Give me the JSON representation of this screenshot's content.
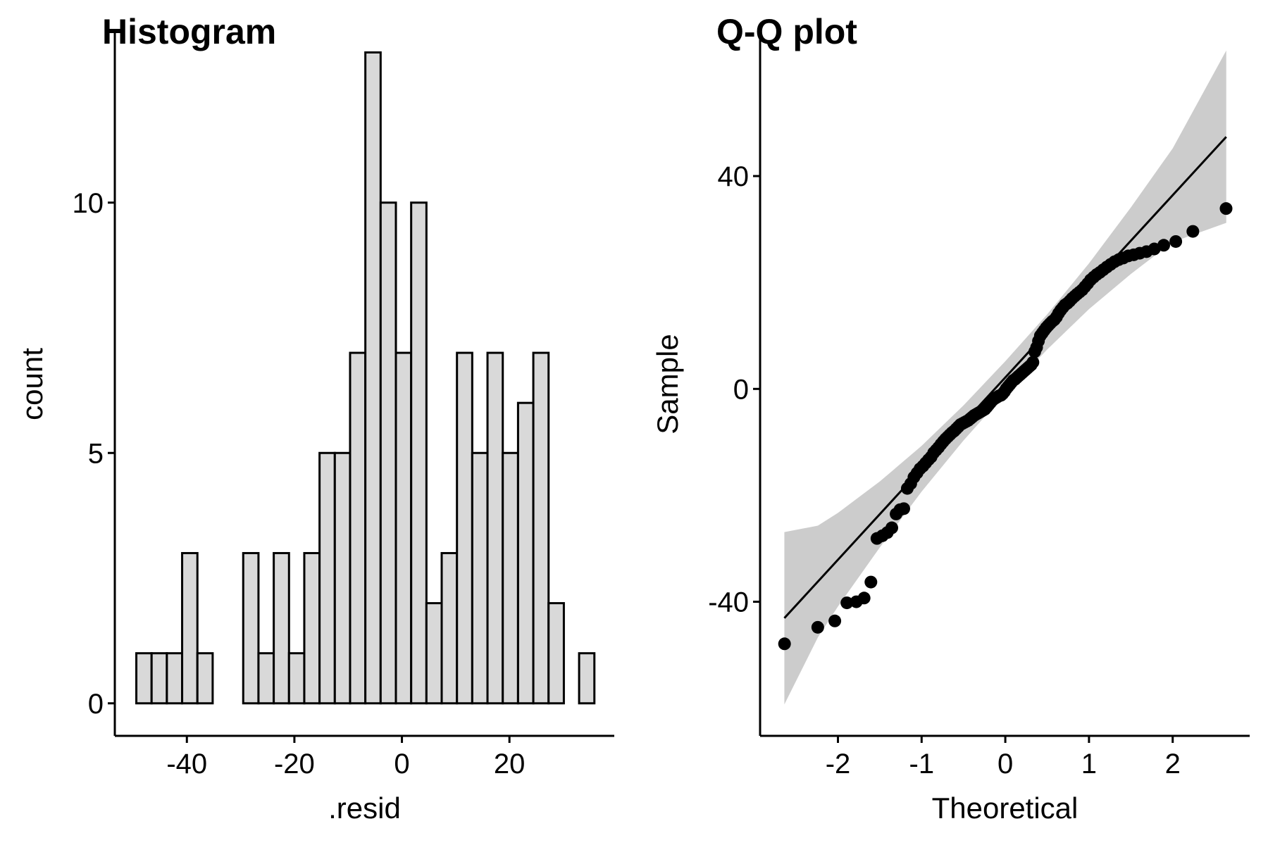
{
  "chart_data": [
    {
      "type": "histogram",
      "title": "Histogram",
      "x_label": ".resid",
      "y_label": "count",
      "bins": [
        -49.4,
        -46.56,
        -43.72,
        -40.88,
        -38.04,
        -35.2,
        -32.36,
        -29.52,
        -26.68,
        -23.84,
        -21.0,
        -18.16,
        -15.32,
        -12.48,
        -9.64,
        -6.8,
        -3.96,
        -1.12,
        1.72,
        4.56,
        7.4,
        10.24,
        13.08,
        15.92,
        18.76,
        21.6,
        24.44,
        27.28,
        30.12,
        32.96,
        35.8
      ],
      "values": [
        1,
        1,
        1,
        3,
        1,
        0,
        0,
        3,
        1,
        3,
        1,
        3,
        5,
        5,
        7,
        13,
        10,
        7,
        10,
        2,
        3,
        7,
        5,
        7,
        5,
        6,
        7,
        2,
        0,
        1
      ],
      "color": "#d9d9d9",
      "edge_color": "#000000",
      "xlim": [
        -53.4,
        39.5
      ],
      "ylim": [
        -0.65,
        13.4
      ],
      "xticks": [
        -40,
        -20,
        0,
        20
      ],
      "yticks": [
        0,
        5,
        10
      ]
    },
    {
      "type": "qq",
      "title": "Q-Q plot",
      "x_label": "Theoretical",
      "y_label": "Sample",
      "x": [
        -2.638,
        -2.241,
        -2.037,
        -1.893,
        -1.78,
        -1.687,
        -1.606,
        -1.534,
        -1.469,
        -1.41,
        -1.356,
        -1.305,
        -1.258,
        -1.213,
        -1.171,
        -1.13,
        -1.092,
        -1.055,
        -1.019,
        -0.984,
        -0.951,
        -0.918,
        -0.887,
        -0.856,
        -0.827,
        -0.798,
        -0.769,
        -0.742,
        -0.714,
        -0.688,
        -0.662,
        -0.636,
        -0.611,
        -0.586,
        -0.561,
        -0.536,
        -0.512,
        -0.489,
        -0.465,
        -0.442,
        -0.419,
        -0.396,
        -0.374,
        -0.352,
        -0.33,
        -0.308,
        -0.286,
        -0.264,
        -0.243,
        -0.221,
        -0.2,
        -0.179,
        -0.157,
        -0.136,
        -0.115,
        -0.094,
        -0.073,
        -0.052,
        -0.031,
        -0.01,
        0.01,
        0.031,
        0.052,
        0.073,
        0.094,
        0.115,
        0.136,
        0.157,
        0.179,
        0.2,
        0.221,
        0.243,
        0.264,
        0.286,
        0.308,
        0.33,
        0.352,
        0.374,
        0.396,
        0.419,
        0.442,
        0.465,
        0.489,
        0.512,
        0.536,
        0.561,
        0.586,
        0.611,
        0.636,
        0.662,
        0.688,
        0.714,
        0.742,
        0.769,
        0.798,
        0.827,
        0.856,
        0.887,
        0.918,
        0.951,
        0.984,
        1.019,
        1.055,
        1.092,
        1.13,
        1.171,
        1.213,
        1.258,
        1.305,
        1.356,
        1.41,
        1.469,
        1.534,
        1.606,
        1.687,
        1.78,
        1.893,
        2.037,
        2.241,
        2.638
      ],
      "y": [
        -47.9,
        -44.8,
        -43.6,
        -40.2,
        -40.0,
        -39.3,
        -36.3,
        -28.1,
        -27.6,
        -27.0,
        -26.1,
        -23.5,
        -22.7,
        -22.5,
        -18.7,
        -17.8,
        -16.6,
        -15.8,
        -15.0,
        -14.5,
        -13.9,
        -13.3,
        -12.8,
        -12.0,
        -11.5,
        -11.0,
        -10.4,
        -9.9,
        -9.4,
        -9.0,
        -8.6,
        -8.2,
        -7.9,
        -7.5,
        -7.1,
        -6.7,
        -6.5,
        -6.3,
        -6.1,
        -5.9,
        -5.6,
        -5.3,
        -5.0,
        -4.8,
        -4.6,
        -4.4,
        -4.2,
        -4.0,
        -3.8,
        -3.4,
        -3.0,
        -2.6,
        -2.2,
        -1.9,
        -1.7,
        -1.5,
        -1.3,
        -1.2,
        -0.9,
        -0.5,
        0.0,
        0.4,
        0.8,
        1.2,
        1.6,
        1.8,
        2.1,
        2.4,
        2.7,
        3.0,
        3.3,
        3.6,
        3.9,
        4.2,
        4.5,
        5.0,
        7.0,
        7.8,
        9.0,
        10.0,
        10.5,
        11.0,
        11.5,
        11.9,
        12.3,
        12.7,
        13.0,
        13.5,
        14.2,
        14.8,
        15.3,
        15.8,
        16.1,
        16.5,
        17.0,
        17.4,
        17.8,
        18.2,
        18.6,
        19.2,
        19.8,
        20.5,
        21.0,
        21.5,
        21.9,
        22.4,
        22.9,
        23.4,
        23.9,
        24.3,
        24.6,
        25.0,
        25.2,
        25.5,
        25.8,
        26.3,
        27.0,
        27.7,
        29.6,
        33.9
      ],
      "color": "#000000",
      "reference_line": {
        "x": [
          -2.64,
          2.64
        ],
        "y": [
          -43.07,
          47.37
        ],
        "color": "#000000"
      },
      "band": {
        "x": [
          -2.64,
          -2.24,
          -2,
          -1.5,
          -1,
          -0.5,
          0,
          0.5,
          1,
          1.5,
          2,
          2.64
        ],
        "lower": [
          -59.3,
          -46.7,
          -40.9,
          -29.8,
          -19.3,
          -9.7,
          -0.9,
          7.4,
          15.0,
          21.6,
          27.6,
          31.2
        ],
        "upper": [
          -26.9,
          -25.7,
          -23.3,
          -17.4,
          -10.7,
          -3.1,
          5.2,
          14.0,
          23.6,
          34.1,
          45.2,
          63.6
        ],
        "color": "#cccccc"
      },
      "xlim": [
        -2.93,
        2.92
      ],
      "ylim": [
        -65.2,
        67
      ],
      "xticks": [
        -2,
        -1,
        0,
        1,
        2
      ],
      "yticks": [
        -40,
        0,
        40
      ]
    }
  ]
}
